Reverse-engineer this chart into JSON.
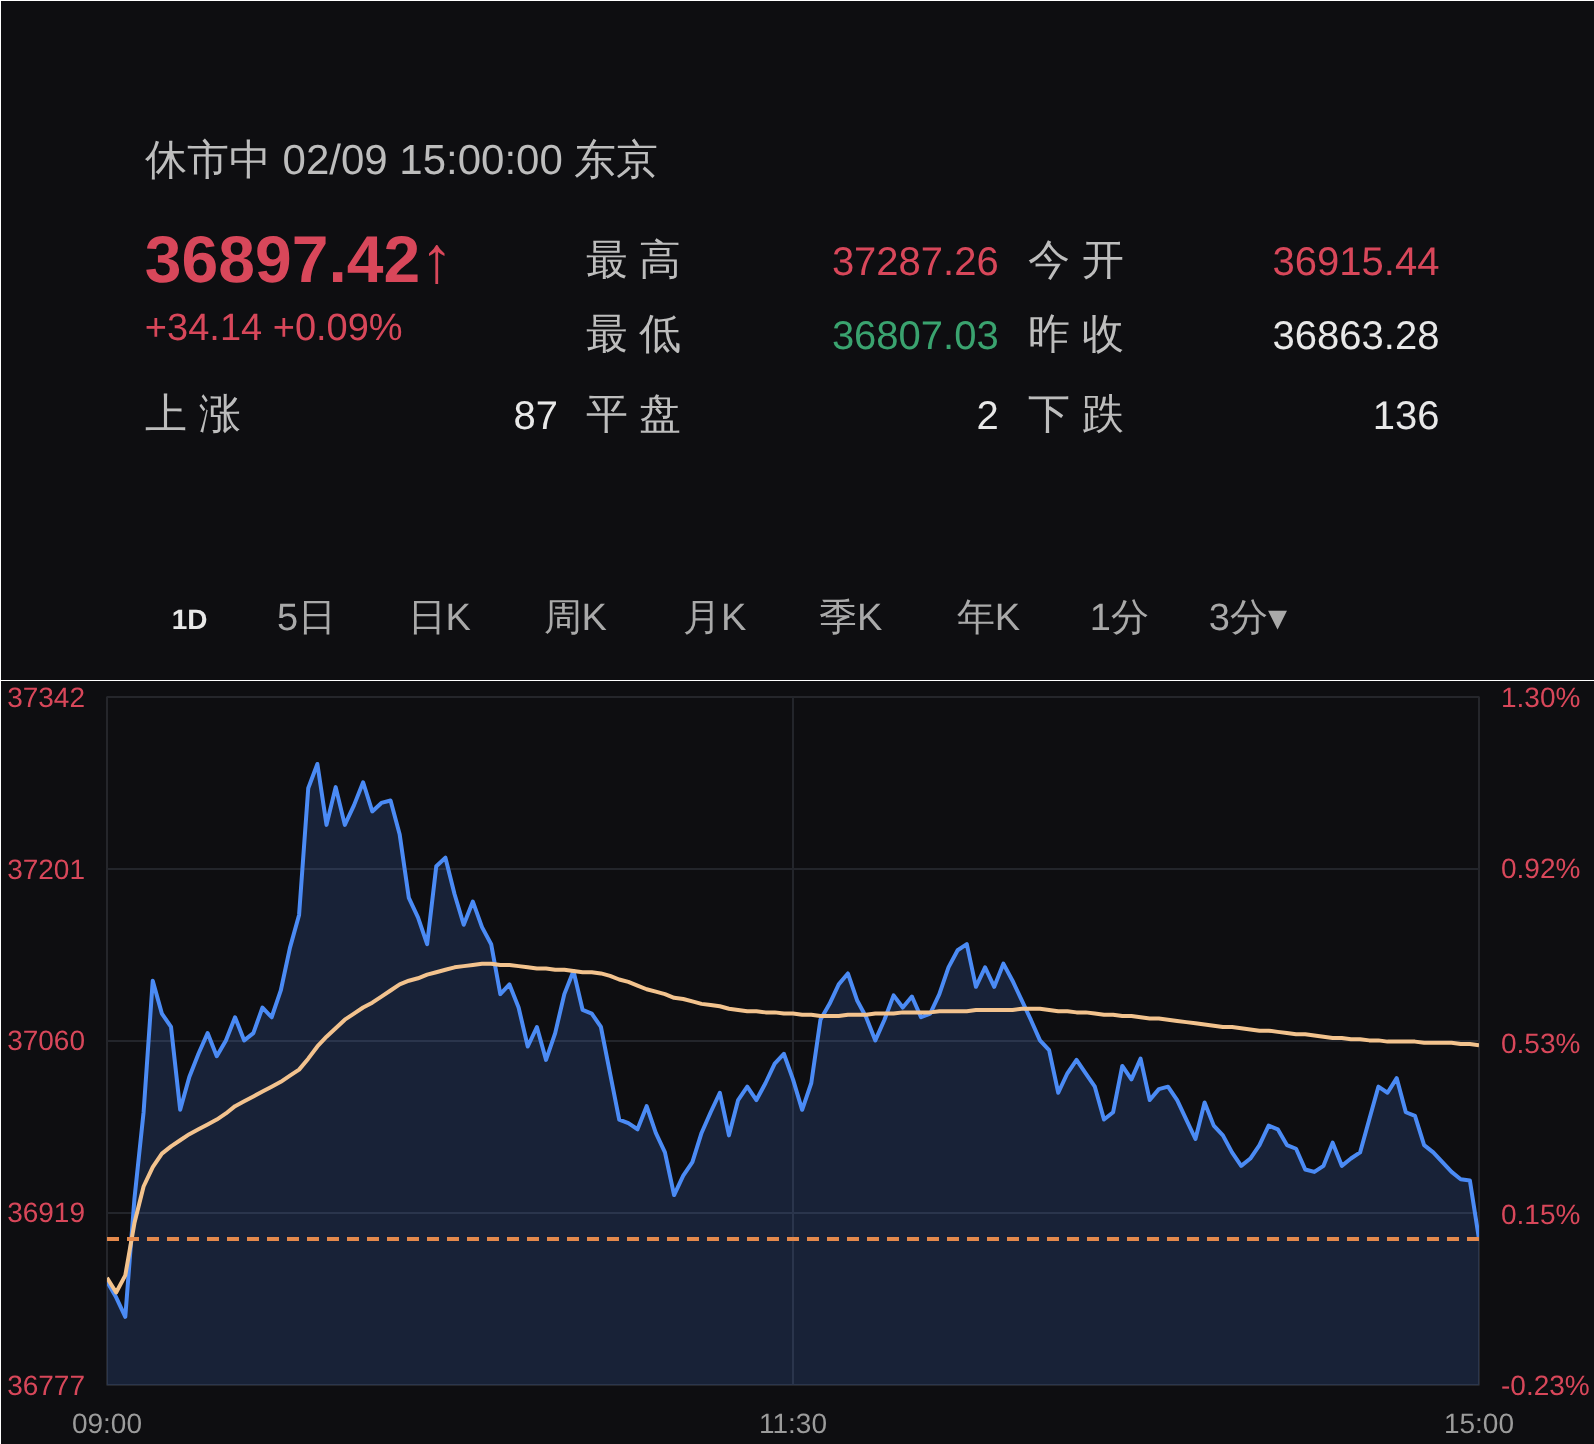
{
  "chart_data": [
    {
      "type": "other",
      "title": "休市中 02/09 15:00:00 东京",
      "annotations": [
        "36897.42↑",
        "最 高",
        "37287.26",
        "今 开",
        "36915.44",
        "+34.14 +0.09%",
        "最 低",
        "36807.03",
        "昨 收",
        "36863.28",
        "上 涨",
        "87",
        "平 盘",
        "2",
        "下 跌",
        "136",
        "1D",
        "5日",
        "日K",
        "周K",
        "月K",
        "季K",
        "年K",
        "1分",
        "3分▾"
      ]
    },
    {
      "type": "line",
      "categories": [
        "09:00",
        null,
        null,
        null,
        null,
        null,
        null,
        null,
        null,
        null,
        null,
        null,
        null,
        null,
        null,
        null,
        null,
        null,
        null,
        null,
        null,
        null,
        null,
        null,
        null,
        null,
        null,
        null,
        null,
        null,
        null,
        null,
        null,
        null,
        null,
        null,
        null,
        null,
        null,
        null,
        null,
        null,
        null,
        null,
        null,
        null,
        null,
        null,
        null,
        null,
        null,
        null,
        null,
        null,
        null,
        null,
        null,
        null,
        null,
        null,
        null,
        null,
        null,
        null,
        null,
        null,
        null,
        null,
        null,
        null,
        null,
        null,
        null,
        null,
        null,
        "11:30",
        null,
        null,
        null,
        null,
        null,
        null,
        null,
        null,
        null,
        null,
        null,
        null,
        null,
        null,
        null,
        null,
        null,
        null,
        null,
        null,
        null,
        null,
        null,
        null,
        null,
        null,
        null,
        null,
        null,
        null,
        null,
        null,
        null,
        null,
        null,
        null,
        null,
        null,
        null,
        null,
        null,
        null,
        null,
        null,
        null,
        null,
        null,
        null,
        null,
        null,
        null,
        null,
        null,
        null,
        null,
        null,
        null,
        null,
        null,
        null,
        null,
        null,
        null,
        null,
        null,
        null,
        null,
        null,
        null,
        null,
        null,
        null,
        null,
        null,
        "15:00"
      ],
      "series": [
        {
          "type": "area",
          "color": "#4b8bf5",
          "values": [
            36862,
            36849,
            36833,
            36930,
            37001,
            37109,
            37082,
            37071,
            37003,
            37030,
            37049,
            37066,
            37047,
            37060,
            37079,
            37060,
            37066,
            37087,
            37079,
            37101,
            37136,
            37163,
            37267,
            37287,
            37237,
            37268,
            37237,
            37253,
            37272,
            37248,
            37255,
            37257,
            37229,
            37177,
            37161,
            37139,
            37203,
            37210,
            37180,
            37155,
            37174,
            37153,
            37139,
            37098,
            37106,
            37087,
            37055,
            37071,
            37044,
            37066,
            37098,
            37117,
            37085,
            37082,
            37071,
            37033,
            36995,
            36992,
            36987,
            37006,
            36984,
            36968,
            36933,
            36949,
            36960,
            36984,
            37001,
            37017,
            36982,
            37011,
            37022,
            37011,
            37025,
            37041,
            37049,
            37028,
            37003,
            37025,
            37077,
            37090,
            37106,
            37115,
            37093,
            37079,
            37060,
            37077,
            37097,
            37087,
            37096,
            37079,
            37082,
            37098,
            37120,
            37134,
            37139,
            37104,
            37120,
            37104,
            37123,
            37109,
            37093,
            37077,
            37060,
            37052,
            37017,
            37033,
            37044,
            37033,
            37022,
            36995,
            37001,
            37039,
            37028,
            37045,
            37011,
            37020,
            37022,
            37011,
            36995,
            36979,
            37009,
            36990,
            36982,
            36968,
            36957,
            36963,
            36974,
            36990,
            36987,
            36974,
            36971,
            36954,
            36952,
            36957,
            36976,
            36957,
            36963,
            36968,
            36995,
            37022,
            37017,
            37029,
            37001,
            36998,
            36974,
            36968,
            36960,
            36952,
            36946,
            36945,
            36897
          ]
        },
        {
          "type": "line",
          "color": "#f3c38e",
          "values": [
            36865,
            36853,
            36867,
            36910,
            36940,
            36956,
            36967,
            36973,
            36978,
            36983,
            36987,
            36991,
            36995,
            37000,
            37006,
            37010,
            37014,
            37018,
            37022,
            37026,
            37031,
            37036,
            37045,
            37055,
            37063,
            37070,
            37077,
            37082,
            37087,
            37091,
            37096,
            37101,
            37106,
            37109,
            37111,
            37114,
            37116,
            37118,
            37120,
            37121,
            37122,
            37123,
            37123,
            37122,
            37122,
            37121,
            37120,
            37119,
            37119,
            37118,
            37118,
            37117,
            37116,
            37116,
            37115,
            37113,
            37110,
            37108,
            37105,
            37102,
            37100,
            37098,
            37095,
            37094,
            37092,
            37090,
            37089,
            37088,
            37086,
            37085,
            37084,
            37084,
            37083,
            37083,
            37082,
            37082,
            37081,
            37081,
            37080,
            37080,
            37080,
            37081,
            37081,
            37081,
            37082,
            37082,
            37082,
            37083,
            37083,
            37083,
            37083,
            37084,
            37084,
            37084,
            37084,
            37085,
            37085,
            37085,
            37085,
            37085,
            37086,
            37086,
            37086,
            37085,
            37084,
            37084,
            37083,
            37083,
            37082,
            37081,
            37081,
            37080,
            37080,
            37079,
            37078,
            37078,
            37077,
            37076,
            37075,
            37074,
            37073,
            37072,
            37071,
            37071,
            37070,
            37069,
            37068,
            37068,
            37067,
            37066,
            37065,
            37065,
            37064,
            37063,
            37062,
            37062,
            37061,
            37061,
            37060,
            37060,
            37059,
            37059,
            37059,
            37059,
            37058,
            37058,
            37058,
            37058,
            37057,
            37057,
            37056
          ]
        }
      ],
      "ylim": [
        36777,
        37342
      ],
      "yticks": [
        36777,
        36919,
        37060,
        37201,
        37342
      ],
      "y2lim": [
        -0.23,
        1.3
      ],
      "y2ticks": [
        {
          "value": -0.23,
          "label": "-0.23%"
        },
        {
          "value": 0.15,
          "label": "0.15%"
        },
        {
          "value": 0.53,
          "label": "0.53%"
        },
        {
          "value": 0.92,
          "label": "0.92%"
        },
        {
          "value": 1.3,
          "label": "1.30%"
        }
      ],
      "ref_lines": [
        {
          "axis": "y",
          "value": 36897,
          "color": "#e4894c",
          "line_style": "dashed"
        }
      ],
      "grid": true
    }
  ]
}
